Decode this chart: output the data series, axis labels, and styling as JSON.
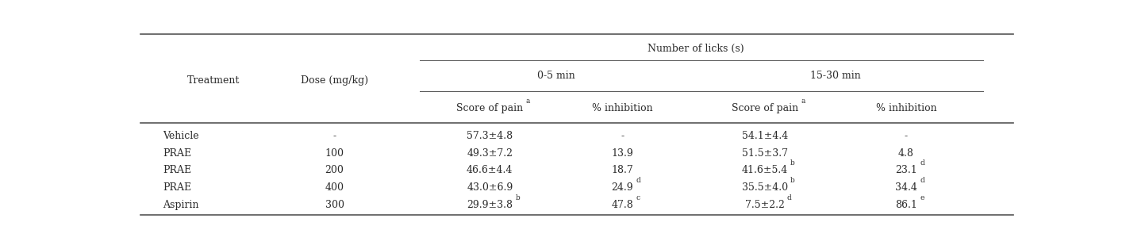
{
  "title": "Number of licks (s)",
  "col1_header": "Treatment",
  "col2_header": "Dose (mg/kg)",
  "group1_label": "0-5 min",
  "group2_label": "15-30 min",
  "subhdr1": "Score of pain",
  "subhdr2": "% inhibition",
  "subhdr3": "Score of pain",
  "subhdr4": "% inhibition",
  "rows": [
    [
      "Vehicle",
      "-",
      "57.3±4.8",
      "-",
      "54.1±4.4",
      "-",
      "",
      "",
      "",
      ""
    ],
    [
      "PRAE",
      "100",
      "49.3±7.2",
      "13.9",
      "51.5±3.7",
      "4.8",
      "",
      "",
      "",
      ""
    ],
    [
      "PRAE",
      "200",
      "46.6±4.4",
      "18.7",
      "41.6±5.4",
      "23.1",
      "",
      "b",
      "",
      "d"
    ],
    [
      "PRAE",
      "400",
      "43.0±6.9",
      "24.9",
      "35.5±4.0",
      "34.4",
      "",
      "b",
      "d",
      "d"
    ],
    [
      "Aspirin",
      "300",
      "29.9±3.8",
      "47.8",
      "7.5±2.2",
      "86.1",
      "b",
      "d",
      "c",
      "e"
    ]
  ],
  "bg_color": "#ffffff",
  "text_color": "#2b2b2b",
  "font_size": 9.0,
  "line_color": "#555555",
  "lw_thin": 0.7,
  "lw_thick": 1.2
}
